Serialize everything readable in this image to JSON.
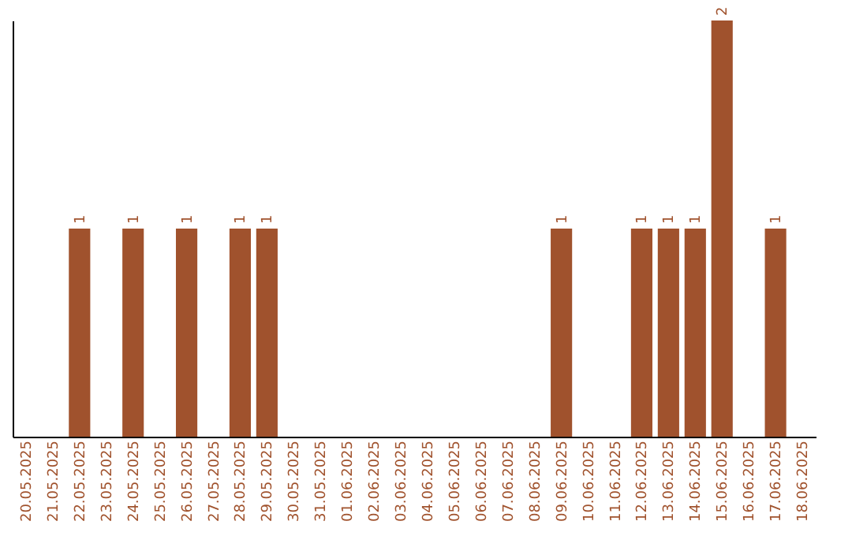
{
  "chart_data": {
    "type": "bar",
    "categories": [
      "20.05.2025",
      "21.05.2025",
      "22.05.2025",
      "23.05.2025",
      "24.05.2025",
      "25.05.2025",
      "26.05.2025",
      "27.05.2025",
      "28.05.2025",
      "29.05.2025",
      "30.05.2025",
      "31.05.2025",
      "01.06.2025",
      "02.06.2025",
      "03.06.2025",
      "04.06.2025",
      "05.06.2025",
      "06.06.2025",
      "07.06.2025",
      "08.06.2025",
      "09.06.2025",
      "10.06.2025",
      "11.06.2025",
      "12.06.2025",
      "13.06.2025",
      "14.06.2025",
      "15.06.2025",
      "16.06.2025",
      "17.06.2025",
      "18.06.2025"
    ],
    "values": [
      0,
      0,
      1,
      0,
      1,
      0,
      1,
      0,
      1,
      1,
      0,
      0,
      0,
      0,
      0,
      0,
      0,
      0,
      0,
      0,
      1,
      0,
      0,
      1,
      1,
      1,
      2,
      0,
      1,
      0
    ],
    "value_labels": [
      null,
      null,
      "1",
      null,
      "1",
      null,
      "1",
      null,
      "1",
      "1",
      null,
      null,
      null,
      null,
      null,
      null,
      null,
      null,
      null,
      null,
      "1",
      null,
      null,
      "1",
      "1",
      "1",
      "2",
      null,
      "1",
      null
    ],
    "color": "#a0522d",
    "grid": false
  }
}
